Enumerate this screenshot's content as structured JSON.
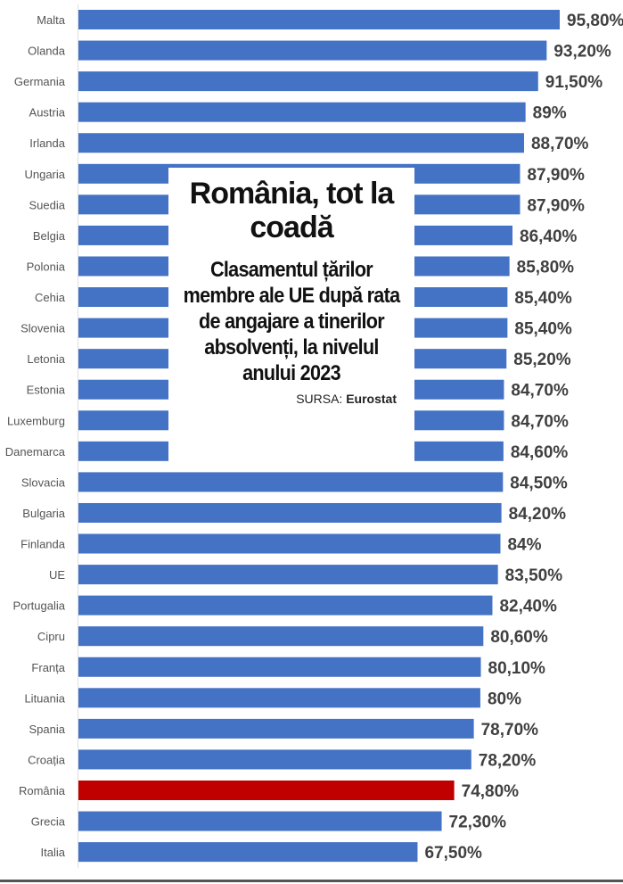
{
  "chart_data": {
    "type": "bar",
    "orientation": "horizontal",
    "title": "România, tot la coadă",
    "subtitle": "Clasamentul țărilor membre ale UE după rata de angajare a tinerilor absolvenți, la nivelul anului 2023",
    "source_label": "SURSA:",
    "source": "Eurostat",
    "categories": [
      "Malta",
      "Olanda",
      "Germania",
      "Austria",
      "Irlanda",
      "Ungaria",
      "Suedia",
      "Belgia",
      "Polonia",
      "Cehia",
      "Slovenia",
      "Letonia",
      "Estonia",
      "Luxemburg",
      "Danemarca",
      "Slovacia",
      "Bulgaria",
      "Finlanda",
      "UE",
      "Portugalia",
      "Cipru",
      "Franța",
      "Lituania",
      "Spania",
      "Croația",
      "România",
      "Grecia",
      "Italia"
    ],
    "values": [
      95.8,
      93.2,
      91.5,
      89,
      88.7,
      87.9,
      87.9,
      86.4,
      85.8,
      85.4,
      85.4,
      85.2,
      84.7,
      84.7,
      84.6,
      84.5,
      84.2,
      84,
      83.5,
      82.4,
      80.6,
      80.1,
      80,
      78.7,
      78.2,
      74.8,
      72.3,
      67.5
    ],
    "labels": [
      "95,80%",
      "93,20%",
      "91,50%",
      "89%",
      "88,70%",
      "87,90%",
      "87,90%",
      "86,40%",
      "85,80%",
      "85,40%",
      "85,40%",
      "85,20%",
      "84,70%",
      "84,70%",
      "84,60%",
      "84,50%",
      "84,20%",
      "84%",
      "83,50%",
      "82,40%",
      "80,60%",
      "80,10%",
      "80%",
      "78,70%",
      "78,20%",
      "74,80%",
      "72,30%",
      "67,50%"
    ],
    "highlight": "România",
    "xlim": [
      0,
      100
    ],
    "colors": {
      "bar": "#4472C4",
      "highlight": "#C00000"
    }
  }
}
